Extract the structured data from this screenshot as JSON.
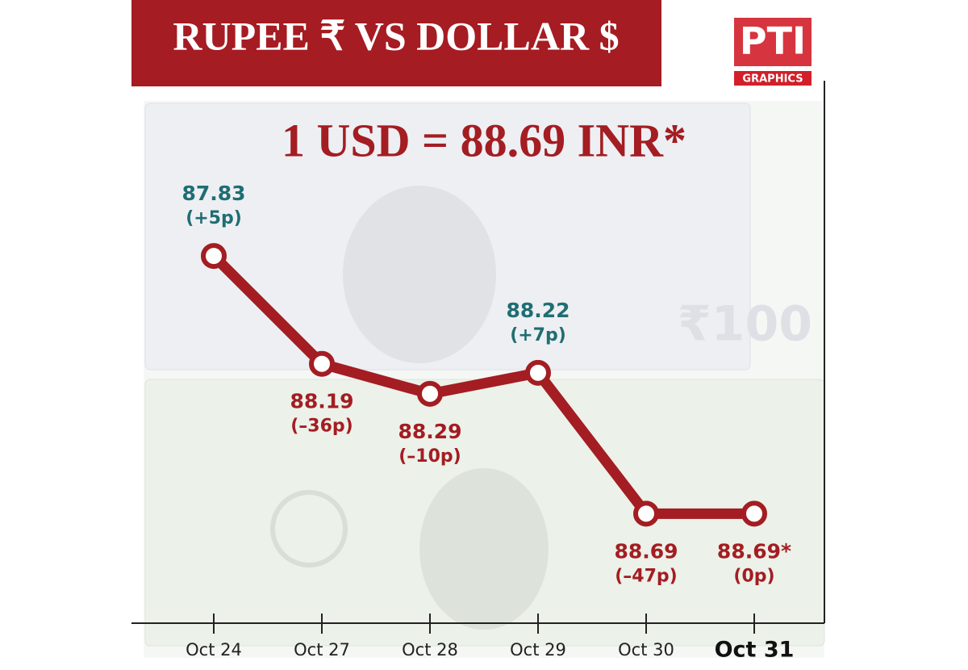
{
  "chart_data": {
    "type": "line",
    "title": "RUPEE ₹   VS   DOLLAR $",
    "subtitle": "1 USD = 88.69 INR*",
    "categories": [
      "Oct 24",
      "Oct 27",
      "Oct 28",
      "Oct 29",
      "Oct 30",
      "Oct 31"
    ],
    "values": [
      87.83,
      88.19,
      88.29,
      88.22,
      88.69,
      88.69
    ],
    "value_labels": [
      "87.83",
      "88.19",
      "88.29",
      "88.22",
      "88.69",
      "88.69*"
    ],
    "changes": [
      "(+5p)",
      "(–36p)",
      "(–10p)",
      "(+7p)",
      "(–47p)",
      "(0p)"
    ],
    "label_colors": [
      "#1f6e72",
      "#a31d22",
      "#a31d22",
      "#1f6e72",
      "#a31d22",
      "#a31d22"
    ],
    "label_positions": [
      "above",
      "below",
      "below",
      "above",
      "below",
      "below"
    ],
    "color": "#a31d22",
    "ylim": [
      87.38,
      89.05
    ],
    "y_inverted": true
  },
  "logo": {
    "name": "PTI",
    "label": "GRAPHICS"
  }
}
